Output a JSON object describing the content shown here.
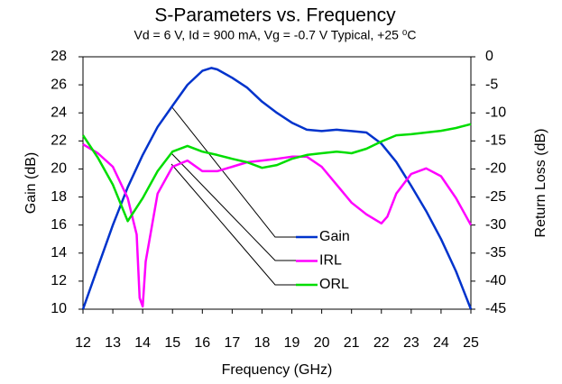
{
  "chart_data": {
    "type": "line",
    "title": "S-Parameters vs. Frequency",
    "subtitle": "Vd = 6 V, Id = 900 mA, Vg = -0.7 V Typical, +25 ⁰C",
    "xlabel": "Frequency (GHz)",
    "ylabel": "Gain (dB)",
    "y2label": "Return Loss (dB)",
    "xlim": [
      12,
      25
    ],
    "ylim": [
      10,
      28
    ],
    "y2lim": [
      -45,
      0
    ],
    "xticks": [
      12,
      13,
      14,
      15,
      16,
      17,
      18,
      19,
      20,
      21,
      22,
      23,
      24,
      25
    ],
    "yticks": [
      10,
      12,
      14,
      16,
      18,
      20,
      22,
      24,
      26,
      28
    ],
    "y2ticks": [
      0,
      -5,
      -10,
      -15,
      -20,
      -25,
      -30,
      -35,
      -40,
      -45
    ],
    "grid": false,
    "series": [
      {
        "name": "Gain",
        "color": "#0033cc",
        "x": [
          12,
          12.5,
          13,
          13.5,
          14,
          14.5,
          15,
          15.5,
          16,
          16.3,
          16.5,
          17,
          17.5,
          18,
          18.5,
          19,
          19.5,
          20,
          20.5,
          21,
          21.5,
          22,
          22.5,
          23,
          23.5,
          24,
          24.5,
          25
        ],
        "values": [
          10,
          13,
          16,
          18.7,
          21,
          23,
          24.5,
          26,
          27,
          27.2,
          27.1,
          26.5,
          25.8,
          24.8,
          24,
          23.3,
          22.8,
          22.7,
          22.8,
          22.7,
          22.6,
          21.8,
          20.5,
          18.8,
          17,
          15,
          12.7,
          10
        ]
      },
      {
        "name": "IRL",
        "color": "#ff00ff",
        "axis": "y2",
        "x": [
          12,
          12.5,
          13,
          13.5,
          13.8,
          13.9,
          14,
          14.1,
          14.5,
          15,
          15.5,
          16,
          16.5,
          17,
          17.5,
          18,
          18.5,
          19,
          19.5,
          20,
          20.5,
          21,
          21.5,
          22,
          22.2,
          22.5,
          23,
          23.5,
          24,
          24.5,
          25
        ],
        "values": [
          -15.6,
          -17.2,
          -19.6,
          -25.2,
          -31.7,
          -43,
          -44.5,
          -36.5,
          -24.4,
          -19.6,
          -18.5,
          -20.4,
          -20.4,
          -19.6,
          -18.8,
          -18.5,
          -18.2,
          -17.8,
          -17.8,
          -19.6,
          -22.8,
          -26,
          -28.1,
          -29.7,
          -28.5,
          -24.4,
          -20.9,
          -19.9,
          -21.3,
          -25.2,
          -30
        ]
      },
      {
        "name": "ORL",
        "color": "#00dd00",
        "axis": "y2",
        "x": [
          12,
          12.5,
          13,
          13.5,
          14,
          14.5,
          15,
          15.5,
          16,
          16.5,
          17,
          17.5,
          18,
          18.5,
          19,
          19.5,
          20,
          20.5,
          21,
          21.5,
          22,
          22.5,
          23,
          23.5,
          24,
          24.5,
          25
        ],
        "values": [
          -14,
          -18,
          -22.8,
          -29.3,
          -25.2,
          -20.4,
          -16.9,
          -15.9,
          -16.9,
          -17.5,
          -18.2,
          -18.8,
          -19.8,
          -19.3,
          -18.2,
          -17.5,
          -17.2,
          -16.9,
          -17.2,
          -16.4,
          -15.1,
          -14,
          -13.8,
          -13.5,
          -13.2,
          -12.7,
          -12
        ]
      }
    ]
  }
}
